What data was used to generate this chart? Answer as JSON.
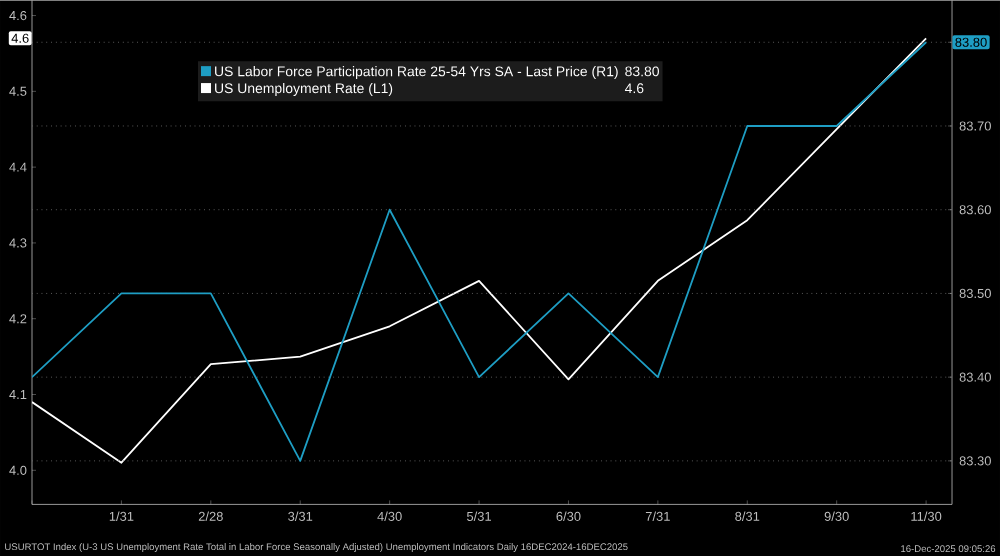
{
  "chart_data": {
    "type": "line",
    "categories": [
      null,
      "1/31",
      "2/28",
      "3/31",
      "4/30",
      "5/31",
      "6/30",
      "7/31",
      "8/31",
      "9/30",
      "11/30"
    ],
    "series": [
      {
        "name": "US Labor Force Participation Rate 25-54 Yrs SA - Last Price (R1)",
        "color": "#1e9ec4",
        "axis": "y2",
        "values": [
          83.4,
          83.5,
          83.5,
          83.3,
          83.6,
          83.4,
          83.5,
          83.4,
          83.7,
          83.7,
          83.8
        ]
      },
      {
        "name": "US Unemployment Rate (L1)",
        "color": "#ffffff",
        "axis": "y",
        "values": [
          4.09,
          4.01,
          4.14,
          4.15,
          4.19,
          4.25,
          4.12,
          4.25,
          4.33,
          4.45,
          4.57
        ]
      }
    ],
    "ylim": [
      3.955,
      4.62
    ],
    "yticks": [
      {
        "value": 4,
        "label": "4.0"
      },
      4.1,
      4.2,
      4.3,
      4.4,
      4.5,
      4.6
    ],
    "y2lim": [
      83.248,
      83.85
    ],
    "y2ticks": [
      {
        "value": 83.3,
        "label": "83.30"
      },
      {
        "value": 83.4,
        "label": "83.40"
      },
      {
        "value": 83.5,
        "label": "83.50"
      },
      {
        "value": 83.6,
        "label": "83.60"
      },
      {
        "value": 83.7,
        "label": "83.70"
      },
      {
        "value": 83.8,
        "label": null
      }
    ],
    "grid": true,
    "legend": "top left",
    "annotations": [
      "USURTOT Index (U-3 US Unemployment Rate Total in Labor Force Seasonally Adjusted) Unemployment Indicators Daily 16DEC2024-16DEC2025",
      "16-Dec-2025 09:05:26",
      "83.80",
      "4.6",
      "83.80",
      "4.6"
    ]
  }
}
